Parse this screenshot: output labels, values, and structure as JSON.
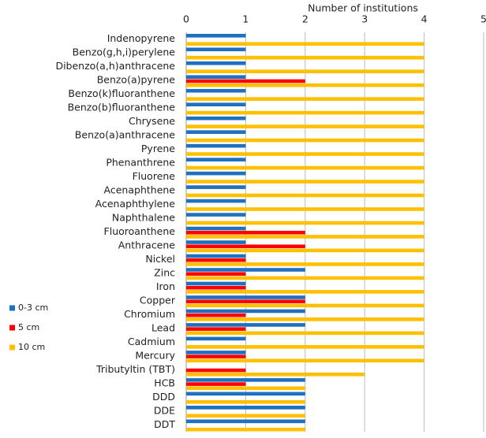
{
  "chart_data": {
    "type": "hbar",
    "x_label": "Number of institutions",
    "xlim": [
      0,
      5
    ],
    "xticks": [
      0,
      1,
      2,
      3,
      4,
      5
    ],
    "grid": true,
    "legend_position": "left",
    "categories": [
      "Indenopyrene",
      "Benzo(g,h,i)perylene",
      "Dibenzo(a,h)anthracene",
      "Benzo(a)pyrene",
      "Benzo(k)fluoranthene",
      "Benzo(b)fluoranthene",
      "Chrysene",
      "Benzo(a)anthracene",
      "Pyrene",
      "Phenanthrene",
      "Fluorene",
      "Acenaphthene",
      "Acenaphthylene",
      "Naphthalene",
      "Fluoroanthene",
      "Anthracene",
      "Nickel",
      "Zinc",
      "Iron",
      "Copper",
      "Chromium",
      "Lead",
      "Cadmium",
      "Mercury",
      "Tributyltin (TBT)",
      "HCB",
      "DDD",
      "DDE",
      "DDT"
    ],
    "series": [
      {
        "name": "0-3 cm",
        "color": "#1f70c1",
        "values": [
          1,
          1,
          1,
          1,
          1,
          1,
          1,
          1,
          1,
          1,
          1,
          1,
          1,
          1,
          1,
          1,
          1,
          2,
          1,
          2,
          2,
          2,
          1,
          1,
          0,
          2,
          2,
          2,
          2
        ]
      },
      {
        "name": "5 cm",
        "color": "#ff0000",
        "values": [
          0,
          0,
          0,
          2,
          0,
          0,
          0,
          0,
          0,
          0,
          0,
          0,
          0,
          0,
          2,
          2,
          1,
          1,
          1,
          2,
          1,
          1,
          0,
          1,
          1,
          1,
          0,
          0,
          0
        ]
      },
      {
        "name": "10 cm",
        "color": "#ffc000",
        "values": [
          4,
          4,
          4,
          4,
          4,
          4,
          4,
          4,
          4,
          4,
          4,
          4,
          4,
          4,
          4,
          4,
          4,
          4,
          4,
          4,
          4,
          4,
          4,
          4,
          3,
          2,
          2,
          2,
          2
        ]
      }
    ]
  }
}
